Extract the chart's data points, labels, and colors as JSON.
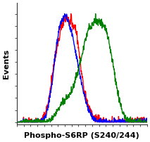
{
  "title": "",
  "xlabel": "Phospho-S6RP (S240/244)",
  "ylabel": "Events",
  "background_color": "#ffffff",
  "plot_bg_color": "#ffffff",
  "colors": {
    "red": "#ff0000",
    "blue": "#0000ff",
    "green": "#008000"
  },
  "xlabel_fontsize": 8.0,
  "ylabel_fontsize": 8.0
}
